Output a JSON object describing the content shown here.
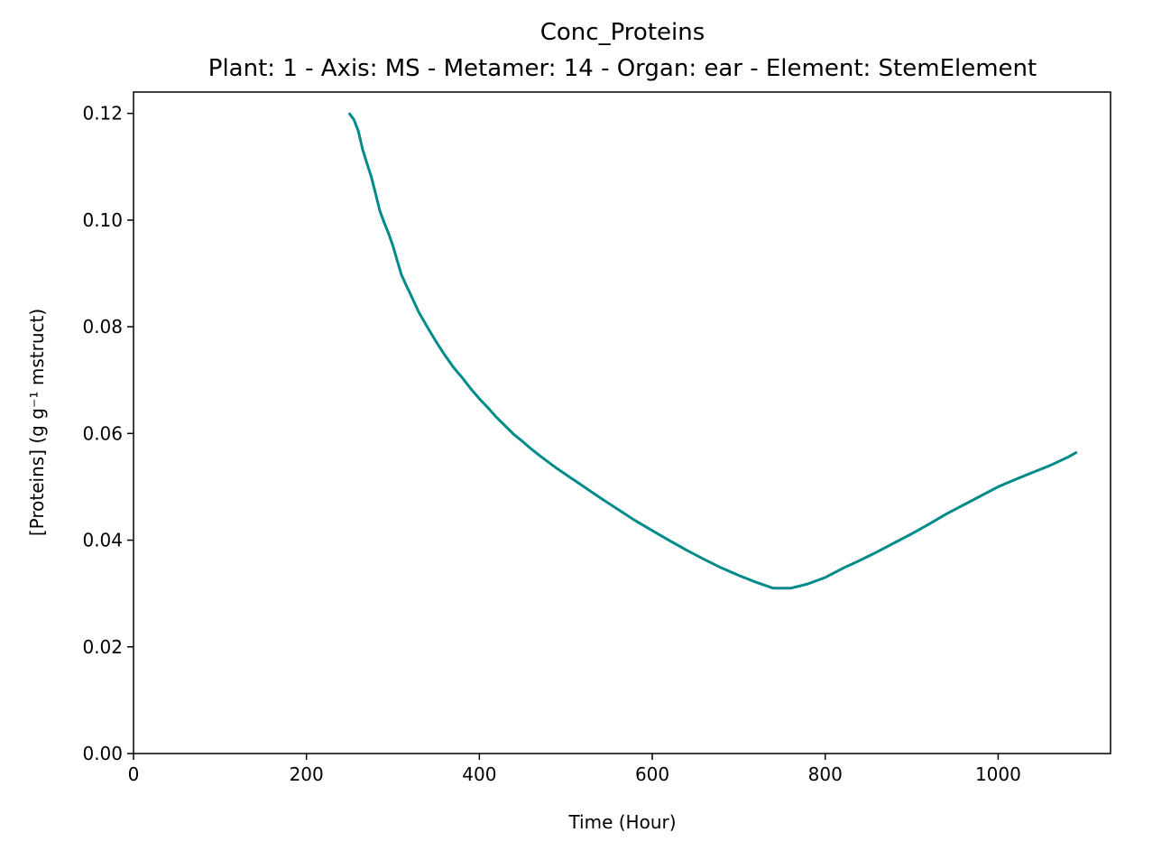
{
  "chart_data": {
    "type": "line",
    "title": "Conc_Proteins",
    "subtitle": "Plant: 1 - Axis: MS - Metamer: 14 - Organ: ear - Element: StemElement",
    "xlabel": "Time (Hour)",
    "ylabel": "[Proteins] (g g⁻¹ mstruct)",
    "xlim": [
      0,
      1130
    ],
    "ylim": [
      0,
      0.124
    ],
    "x_ticks": [
      0,
      200,
      400,
      600,
      800,
      1000
    ],
    "x_tick_labels": [
      "0",
      "200",
      "400",
      "600",
      "800",
      "1000"
    ],
    "y_ticks": [
      0.0,
      0.02,
      0.04,
      0.06,
      0.08,
      0.1,
      0.12
    ],
    "y_tick_labels": [
      "0.00",
      "0.02",
      "0.04",
      "0.06",
      "0.08",
      "0.10",
      "0.12"
    ],
    "grid": false,
    "legend": "none",
    "series": [
      {
        "color": "#008b8b",
        "x": [
          250,
          255,
          260,
          265,
          270,
          275,
          280,
          285,
          290,
          295,
          300,
          305,
          310,
          315,
          320,
          330,
          340,
          350,
          360,
          370,
          380,
          390,
          400,
          410,
          420,
          430,
          440,
          450,
          460,
          470,
          480,
          490,
          500,
          520,
          540,
          560,
          580,
          600,
          620,
          640,
          660,
          680,
          700,
          720,
          740,
          760,
          780,
          800,
          820,
          840,
          860,
          880,
          900,
          920,
          940,
          960,
          980,
          1000,
          1020,
          1040,
          1060,
          1080,
          1090
        ],
        "y": [
          0.1199,
          0.1188,
          0.1167,
          0.1132,
          0.1106,
          0.1081,
          0.1049,
          0.1017,
          0.0995,
          0.0975,
          0.0952,
          0.0924,
          0.0897,
          0.0879,
          0.0862,
          0.0827,
          0.0799,
          0.0772,
          0.0747,
          0.0724,
          0.0705,
          0.0684,
          0.0665,
          0.0648,
          0.063,
          0.0614,
          0.0598,
          0.0585,
          0.0571,
          0.0558,
          0.0546,
          0.0534,
          0.0523,
          0.0501,
          0.0479,
          0.0458,
          0.0437,
          0.0418,
          0.0399,
          0.0381,
          0.0364,
          0.0348,
          0.0334,
          0.0321,
          0.031,
          0.031,
          0.0318,
          0.033,
          0.0347,
          0.0362,
          0.0378,
          0.0395,
          0.0412,
          0.043,
          0.0449,
          0.0466,
          0.0483,
          0.05,
          0.0514,
          0.0527,
          0.054,
          0.0555,
          0.0564
        ]
      }
    ]
  }
}
